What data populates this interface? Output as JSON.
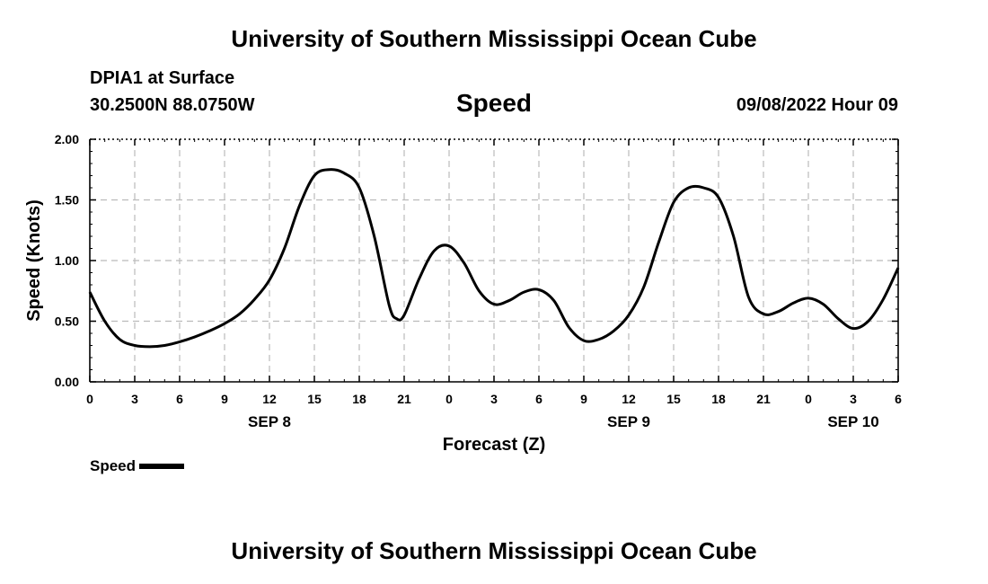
{
  "header": {
    "title": "University of Southern Mississippi Ocean Cube",
    "station": "DPIA1 at Surface",
    "coords": "30.2500N  88.0750W",
    "chart_title": "Speed",
    "datetime": "09/08/2022 Hour 09"
  },
  "footer": {
    "title": "University of Southern Mississippi Ocean Cube"
  },
  "legend": {
    "label": "Speed"
  },
  "chart_data": {
    "type": "line",
    "title": "Speed",
    "xlabel": "Forecast (Z)",
    "ylabel": "Speed (Knots)",
    "xlim": [
      0,
      54
    ],
    "ylim": [
      0,
      2
    ],
    "x_unit": "hours from 09/08 00Z",
    "x_ticks": [
      0,
      3,
      6,
      9,
      12,
      15,
      18,
      21,
      24,
      27,
      30,
      33,
      36,
      39,
      42,
      45,
      48,
      51,
      54
    ],
    "x_tick_labels": [
      "0",
      "3",
      "6",
      "9",
      "12",
      "15",
      "18",
      "21",
      "0",
      "3",
      "6",
      "9",
      "12",
      "15",
      "18",
      "21",
      "0",
      "3",
      "6"
    ],
    "date_labels": [
      {
        "x": 12,
        "text": "SEP 8"
      },
      {
        "x": 36,
        "text": "SEP 9"
      },
      {
        "x": 51,
        "text": "SEP 10"
      }
    ],
    "y_ticks": [
      0,
      0.5,
      1,
      1.5,
      2
    ],
    "y_tick_labels": [
      "0.00",
      "0.50",
      "1.00",
      "1.50",
      "2.00"
    ],
    "grid": true,
    "legend_position": "bottom-left",
    "series": [
      {
        "name": "Speed",
        "color": "#000000",
        "x": [
          0,
          1,
          2,
          3,
          4,
          5,
          6,
          7,
          8,
          9,
          10,
          11,
          12,
          13,
          14,
          15,
          16,
          17,
          18,
          19,
          20,
          20.5,
          21,
          22,
          23,
          24,
          25,
          26,
          27,
          28,
          29,
          30,
          31,
          32,
          33,
          34,
          35,
          36,
          37,
          38,
          39,
          40,
          41,
          42,
          43,
          44,
          45,
          46,
          47,
          48,
          49,
          50,
          51,
          52,
          53,
          54
        ],
        "y": [
          0.74,
          0.5,
          0.35,
          0.3,
          0.29,
          0.3,
          0.33,
          0.37,
          0.42,
          0.48,
          0.56,
          0.68,
          0.84,
          1.1,
          1.45,
          1.7,
          1.75,
          1.72,
          1.6,
          1.2,
          0.63,
          0.52,
          0.55,
          0.85,
          1.08,
          1.12,
          0.98,
          0.75,
          0.64,
          0.67,
          0.74,
          0.76,
          0.67,
          0.45,
          0.34,
          0.35,
          0.42,
          0.55,
          0.78,
          1.15,
          1.48,
          1.6,
          1.6,
          1.52,
          1.2,
          0.7,
          0.56,
          0.58,
          0.65,
          0.69,
          0.64,
          0.52,
          0.44,
          0.5,
          0.68,
          0.94
        ]
      }
    ]
  }
}
